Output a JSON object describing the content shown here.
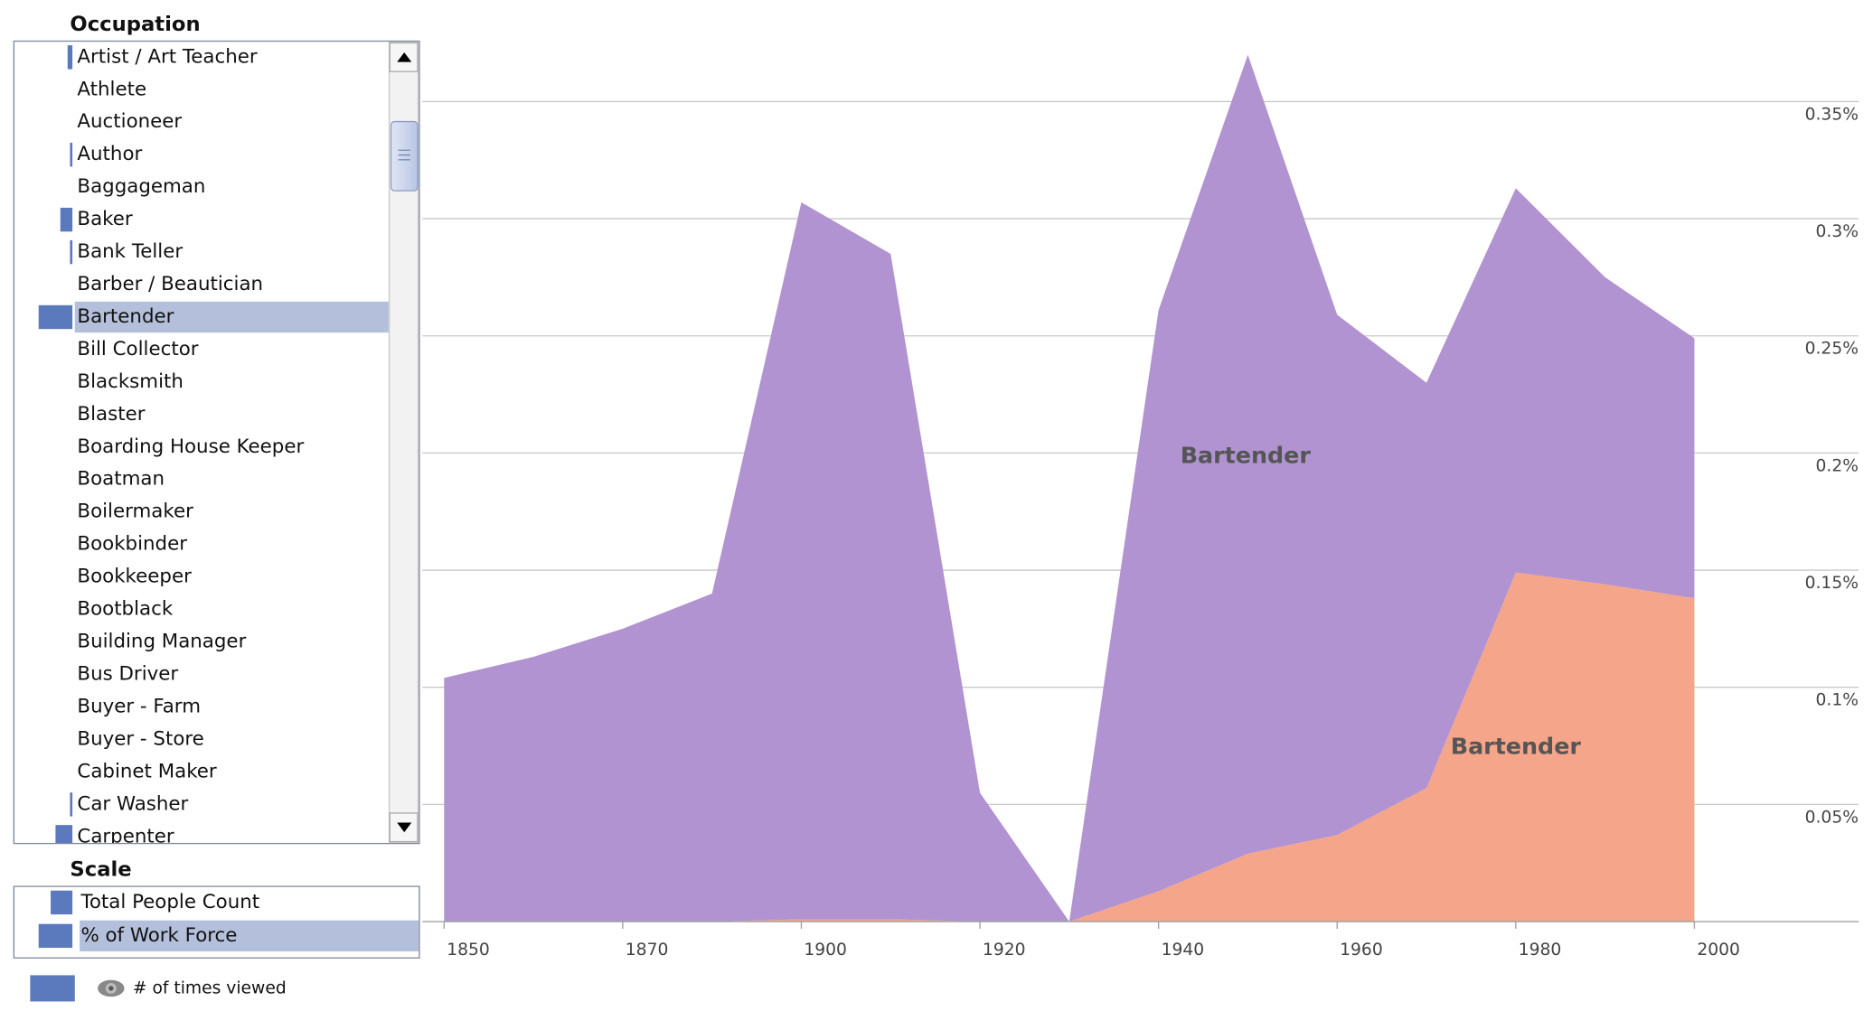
{
  "sidebar": {
    "occupation_title": "Occupation",
    "occupations": [
      {
        "name": "Artist / Art Teacher",
        "views": 4
      },
      {
        "name": "Athlete",
        "views": 0
      },
      {
        "name": "Auctioneer",
        "views": 0
      },
      {
        "name": "Author",
        "views": 2
      },
      {
        "name": "Baggageman",
        "views": 0
      },
      {
        "name": "Baker",
        "views": 10
      },
      {
        "name": "Bank Teller",
        "views": 2
      },
      {
        "name": "Barber / Beautician",
        "views": 0
      },
      {
        "name": "Bartender",
        "views": 28,
        "selected": true
      },
      {
        "name": "Bill Collector",
        "views": 0
      },
      {
        "name": "Blacksmith",
        "views": 0
      },
      {
        "name": "Blaster",
        "views": 0
      },
      {
        "name": "Boarding House Keeper",
        "views": 0
      },
      {
        "name": "Boatman",
        "views": 0
      },
      {
        "name": "Boilermaker",
        "views": 0
      },
      {
        "name": "Bookbinder",
        "views": 0
      },
      {
        "name": "Bookkeeper",
        "views": 0
      },
      {
        "name": "Bootblack",
        "views": 0
      },
      {
        "name": "Building Manager",
        "views": 0
      },
      {
        "name": "Bus Driver",
        "views": 0
      },
      {
        "name": "Buyer - Farm",
        "views": 0
      },
      {
        "name": "Buyer - Store",
        "views": 0
      },
      {
        "name": "Cabinet Maker",
        "views": 0
      },
      {
        "name": "Car Washer",
        "views": 2
      },
      {
        "name": "Carpenter",
        "views": 14
      }
    ],
    "scale_title": "Scale",
    "scales": [
      {
        "name": "Total People Count",
        "views": 18
      },
      {
        "name": "% of Work Force",
        "views": 28,
        "selected": true
      }
    ],
    "legend_label": "# of times viewed",
    "legend_color": "#5b79bd"
  },
  "chart_data": {
    "type": "area",
    "stacked": true,
    "categories": [
      "1850",
      null,
      "1870",
      null,
      "1900",
      null,
      "1920",
      null,
      "1940",
      null,
      "1960",
      null,
      "1980",
      null,
      "2000"
    ],
    "series": [
      {
        "name": "Bartender",
        "color": "#f4a58a",
        "values": [
          0,
          0,
          0,
          0,
          0.001,
          0.001,
          0,
          0,
          0.013,
          0.029,
          0.037,
          0.057,
          0.149,
          0.144,
          0.138
        ]
      },
      {
        "name": "Bartender",
        "color": "#b093d0",
        "values": [
          0.104,
          0.113,
          0.125,
          0.14,
          0.306,
          0.284,
          0.055,
          0,
          0.248,
          0.341,
          0.222,
          0.173,
          0.164,
          0.131,
          0.111
        ]
      }
    ],
    "ylim": [
      0,
      0.373
    ],
    "yticks": [
      {
        "value": 0.05,
        "label": "0.05%"
      },
      {
        "value": 0.1,
        "label": "0.1%"
      },
      {
        "value": 0.15,
        "label": "0.15%"
      },
      {
        "value": 0.2,
        "label": "0.2%"
      },
      {
        "value": 0.25,
        "label": "0.25%"
      },
      {
        "value": 0.3,
        "label": "0.3%"
      },
      {
        "value": 0.35,
        "label": "0.35%"
      }
    ],
    "grid": true,
    "y_axis_side": "right"
  }
}
